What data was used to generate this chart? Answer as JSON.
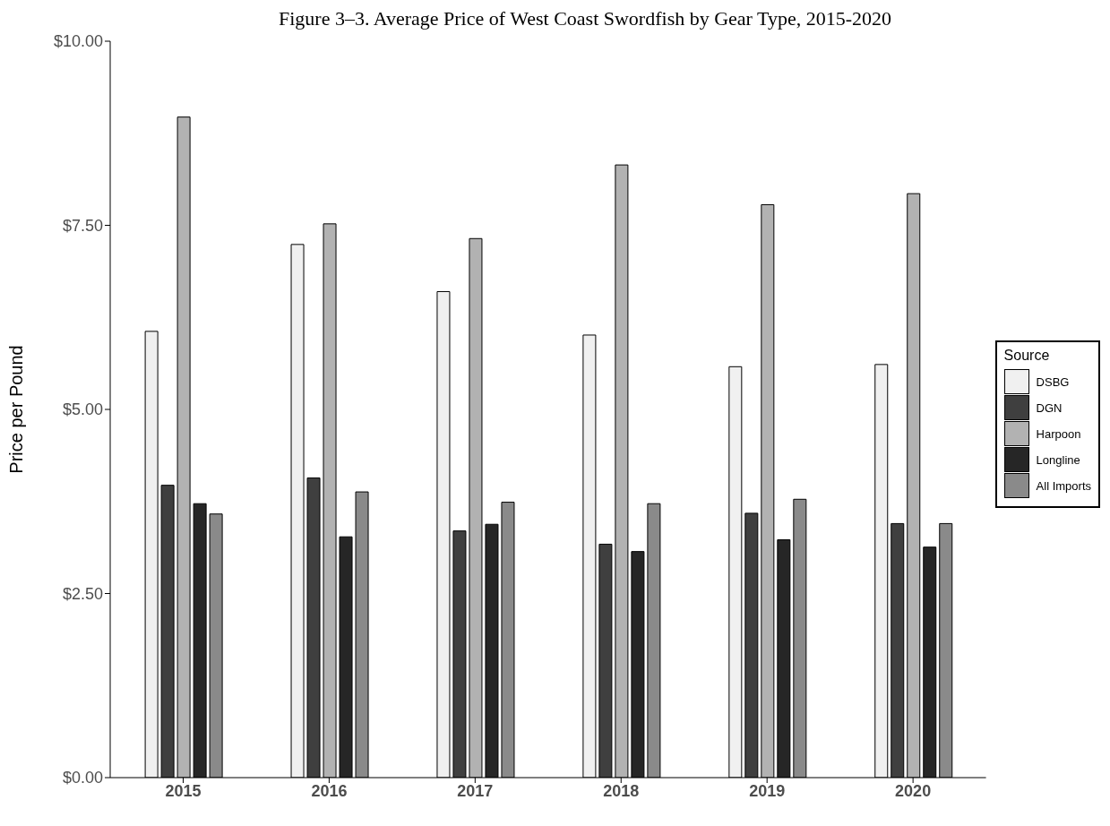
{
  "chart_data": {
    "type": "bar",
    "title": "Figure 3–3. Average Price of West Coast Swordfish by Gear Type, 2015-2020",
    "ylabel": "Price per Pound",
    "legend_title": "Source",
    "legend": "right",
    "grid": false,
    "categories": [
      "2015",
      "2016",
      "2017",
      "2018",
      "2019",
      "2020"
    ],
    "ylim": [
      0,
      10
    ],
    "yticks": [
      {
        "value": 0,
        "label": "$0.00"
      },
      {
        "value": 2.5,
        "label": "$2.50"
      },
      {
        "value": 5,
        "label": "$5.00"
      },
      {
        "value": 7.5,
        "label": "$7.50"
      },
      {
        "value": 10,
        "label": "$10.00"
      }
    ],
    "series": [
      {
        "name": "DSBG",
        "color": "#f0f0f0",
        "values": [
          6.06,
          7.24,
          6.6,
          6.01,
          5.58,
          5.61
        ]
      },
      {
        "name": "DGN",
        "color": "#3f3f3f",
        "values": [
          3.97,
          4.07,
          3.35,
          3.17,
          3.59,
          3.45
        ]
      },
      {
        "name": "Harpoon",
        "color": "#b2b2b2",
        "values": [
          8.97,
          7.52,
          7.32,
          8.32,
          7.78,
          7.93
        ]
      },
      {
        "name": "Longline",
        "color": "#262626",
        "values": [
          3.72,
          3.27,
          3.44,
          3.07,
          3.23,
          3.13
        ]
      },
      {
        "name": "All Imports",
        "color": "#8a8a8a",
        "values": [
          3.58,
          3.88,
          3.74,
          3.72,
          3.78,
          3.45
        ]
      }
    ]
  }
}
